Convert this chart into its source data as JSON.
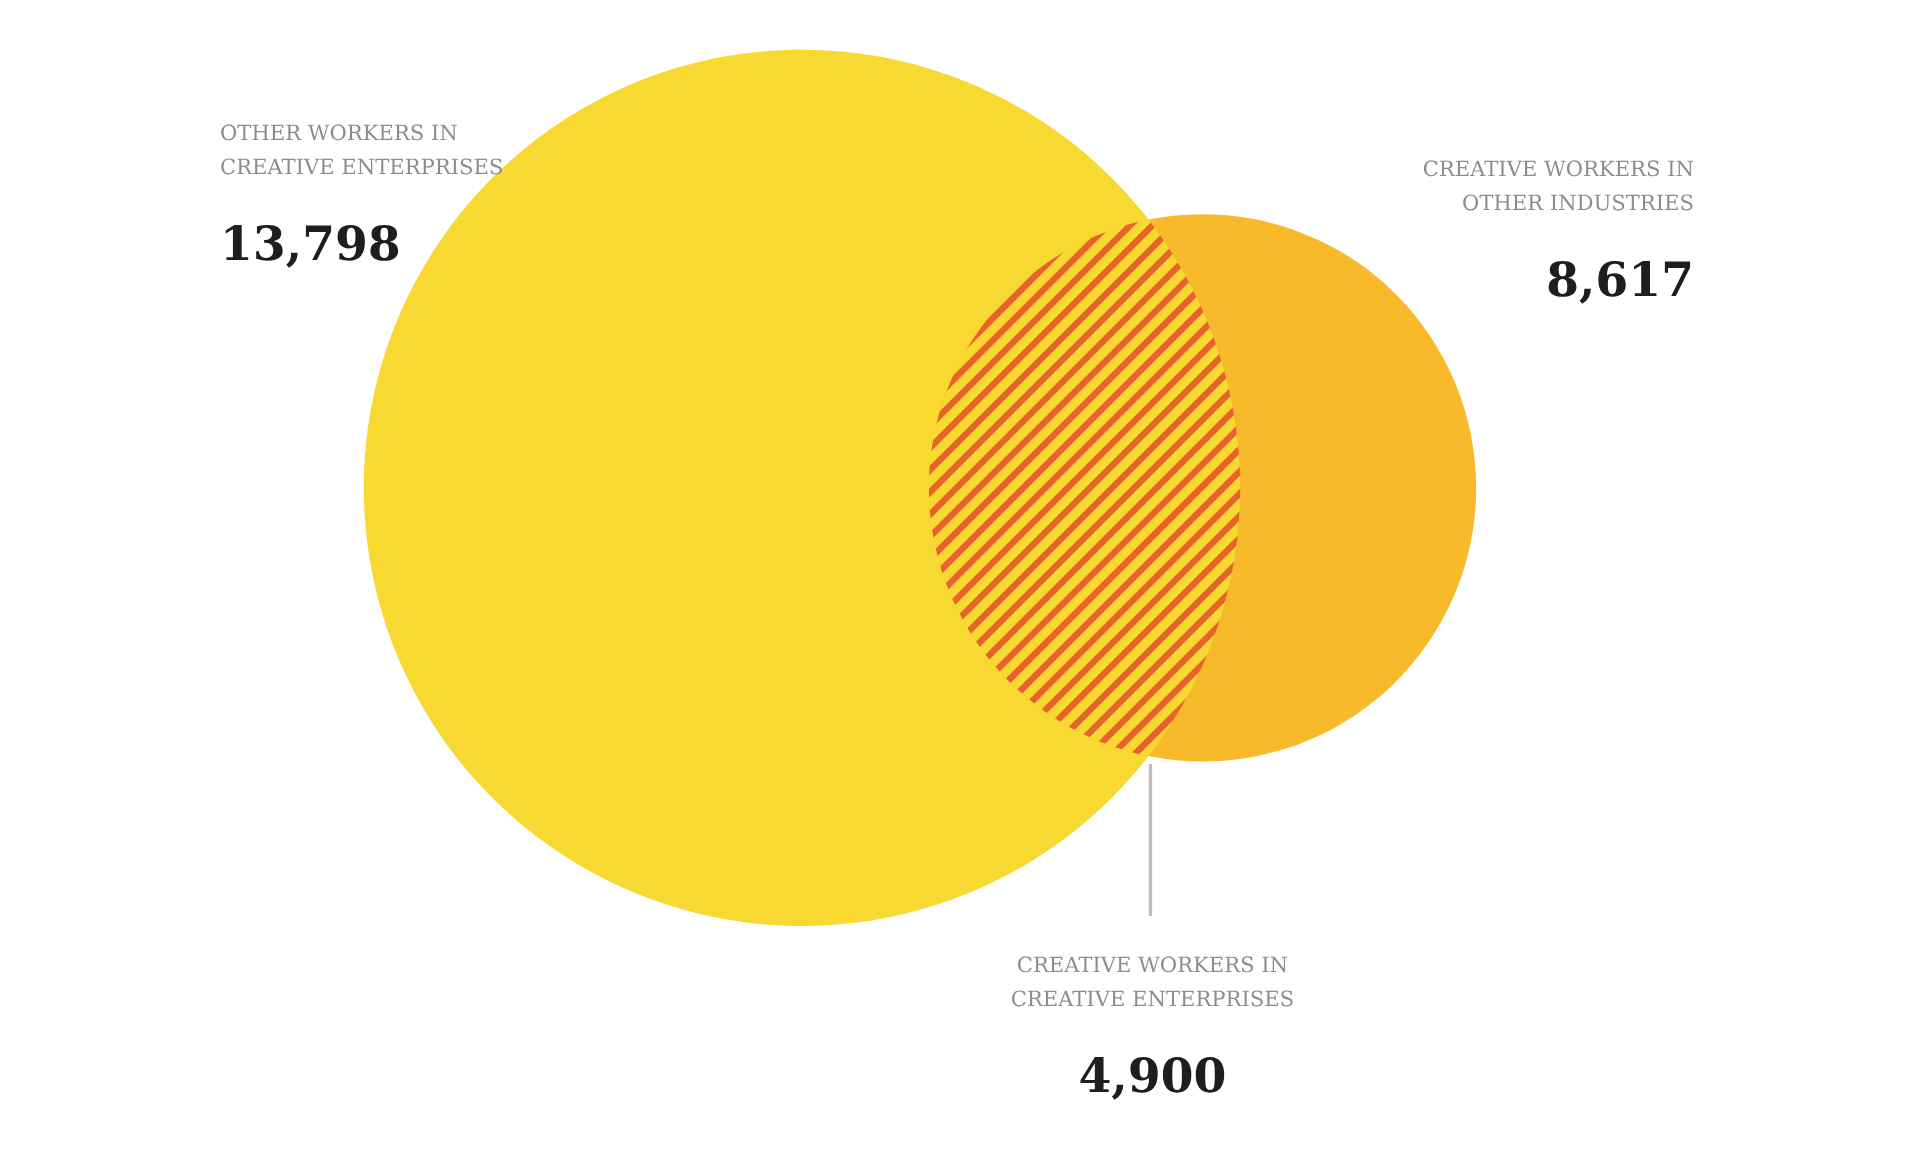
{
  "chart_data": {
    "type": "other",
    "categories": [
      "OTHER WORKERS IN\nCREATIVE ENTERPRISES",
      "CREATIVE WORKERS IN\nOTHER INDUSTRIES",
      "CREATIVE WORKERS IN\nCREATIVE ENTERPRISES"
    ],
    "values": [
      13798,
      8617,
      4900
    ],
    "value_labels": [
      "13,798",
      "8,617",
      "4,900"
    ],
    "colors": [
      "#f7d932",
      "#f8b92b",
      "#e8632a"
    ]
  }
}
